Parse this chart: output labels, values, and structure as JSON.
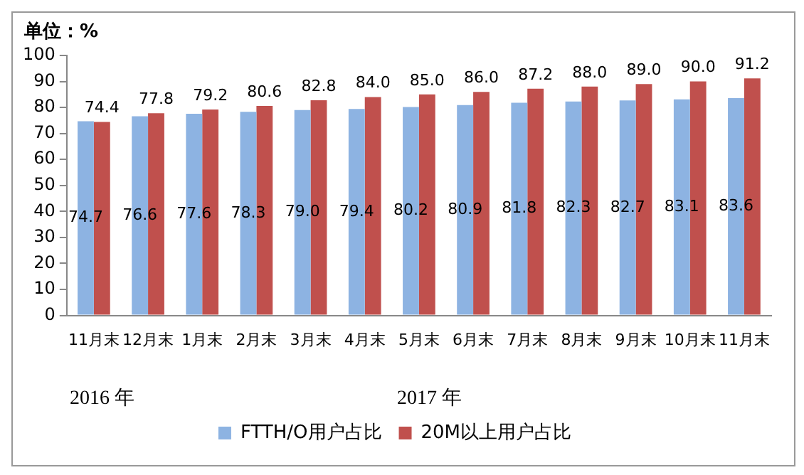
{
  "chart_data": {
    "type": "bar",
    "ylabel": "单位：%",
    "categories": [
      "11月末",
      "12月末",
      "1月末",
      "2月末",
      "3月末",
      "4月末",
      "5月末",
      "6月末",
      "7月末",
      "8月末",
      "9月末",
      "10月末",
      "11月末"
    ],
    "series": [
      {
        "name": "FTTH/O用户占比",
        "color": "#8db3e2",
        "values": [
          74.7,
          76.6,
          77.6,
          78.3,
          79.0,
          79.4,
          80.2,
          80.9,
          81.8,
          82.3,
          82.7,
          83.1,
          83.6
        ],
        "value_labels": [
          "74.7",
          "76.6",
          "77.6",
          "78.3",
          "79.0",
          "79.4",
          "80.2",
          "80.9",
          "81.8",
          "82.3",
          "82.7",
          "83.1",
          "83.6"
        ]
      },
      {
        "name": "20M以上用户占比",
        "color": "#c0504d",
        "values": [
          74.4,
          77.8,
          79.2,
          80.6,
          82.8,
          84.0,
          85.0,
          86.0,
          87.2,
          88.0,
          89.0,
          90.0,
          91.2
        ],
        "value_labels": [
          "74.4",
          "77.8",
          "79.2",
          "80.6",
          "82.8",
          "84.0",
          "85.0",
          "86.0",
          "87.2",
          "88.0",
          "89.0",
          "90.0",
          "91.2"
        ]
      }
    ],
    "ylim": [
      0,
      100
    ],
    "yticks": [
      0,
      10,
      20,
      30,
      40,
      50,
      60,
      70,
      80,
      90,
      100
    ],
    "grid": false,
    "legend": "bottom",
    "annotations": [
      "2016 年",
      "2017 年"
    ]
  }
}
